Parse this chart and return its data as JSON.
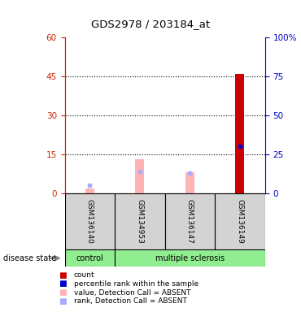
{
  "title": "GDS2978 / 203184_at",
  "samples": [
    "GSM136140",
    "GSM134953",
    "GSM136147",
    "GSM136149"
  ],
  "groups": [
    "control",
    "multiple sclerosis",
    "multiple sclerosis",
    "multiple sclerosis"
  ],
  "bar_values": [
    2,
    13,
    8,
    46
  ],
  "bar_colors_value": [
    "#ffb3b3",
    "#ffb3b3",
    "#ffb3b3",
    "#cc0000"
  ],
  "rank_dots": [
    5,
    14,
    13,
    30
  ],
  "rank_colors": [
    "#aaaaff",
    "#aaaaff",
    "#aaaaff",
    "#0000cc"
  ],
  "ylim_left": [
    0,
    60
  ],
  "ylim_right": [
    0,
    100
  ],
  "yticks_left": [
    0,
    15,
    30,
    45,
    60
  ],
  "yticks_right": [
    0,
    25,
    50,
    75,
    100
  ],
  "left_axis_color": "#cc2200",
  "right_axis_color": "#0000cc",
  "legend_items": [
    {
      "label": "count",
      "color": "#cc0000"
    },
    {
      "label": "percentile rank within the sample",
      "color": "#0000cc"
    },
    {
      "label": "value, Detection Call = ABSENT",
      "color": "#ffb3b3"
    },
    {
      "label": "rank, Detection Call = ABSENT",
      "color": "#aaaaff"
    }
  ],
  "disease_state_label": "disease state",
  "bar_width": 0.18
}
